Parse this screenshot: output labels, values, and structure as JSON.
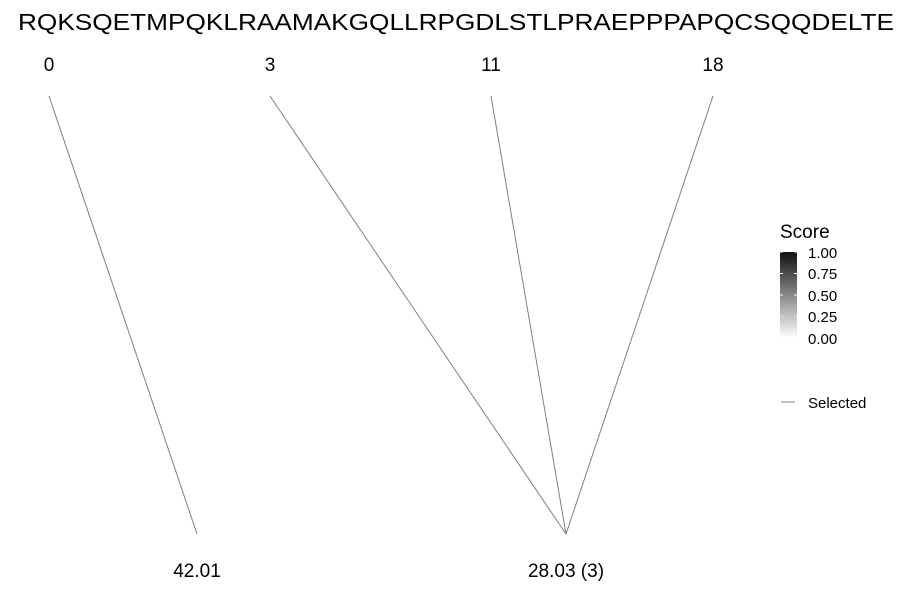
{
  "sequence": "RQKSQETMPQKLRAAMAKGQLLRPGDLSTLPRAEPPPAPQCSQQDELTE",
  "positions": [
    {
      "label": "0"
    },
    {
      "label": "3"
    },
    {
      "label": "11"
    },
    {
      "label": "18"
    }
  ],
  "fragments": [
    {
      "label": "42.01"
    },
    {
      "label": "28.03 (3)"
    }
  ],
  "connections": [
    {
      "from": 0,
      "to": 0
    },
    {
      "from": 1,
      "to": 1
    },
    {
      "from": 2,
      "to": 1
    },
    {
      "from": 3,
      "to": 1
    }
  ],
  "legend": {
    "score_title": "Score",
    "score_ticks": [
      "1.00",
      "0.75",
      "0.50",
      "0.25",
      "0.00"
    ],
    "score_gradient": {
      "high": "#111111",
      "low": "#ffffff"
    },
    "selected_label": "Selected",
    "line_color": "#808080"
  }
}
